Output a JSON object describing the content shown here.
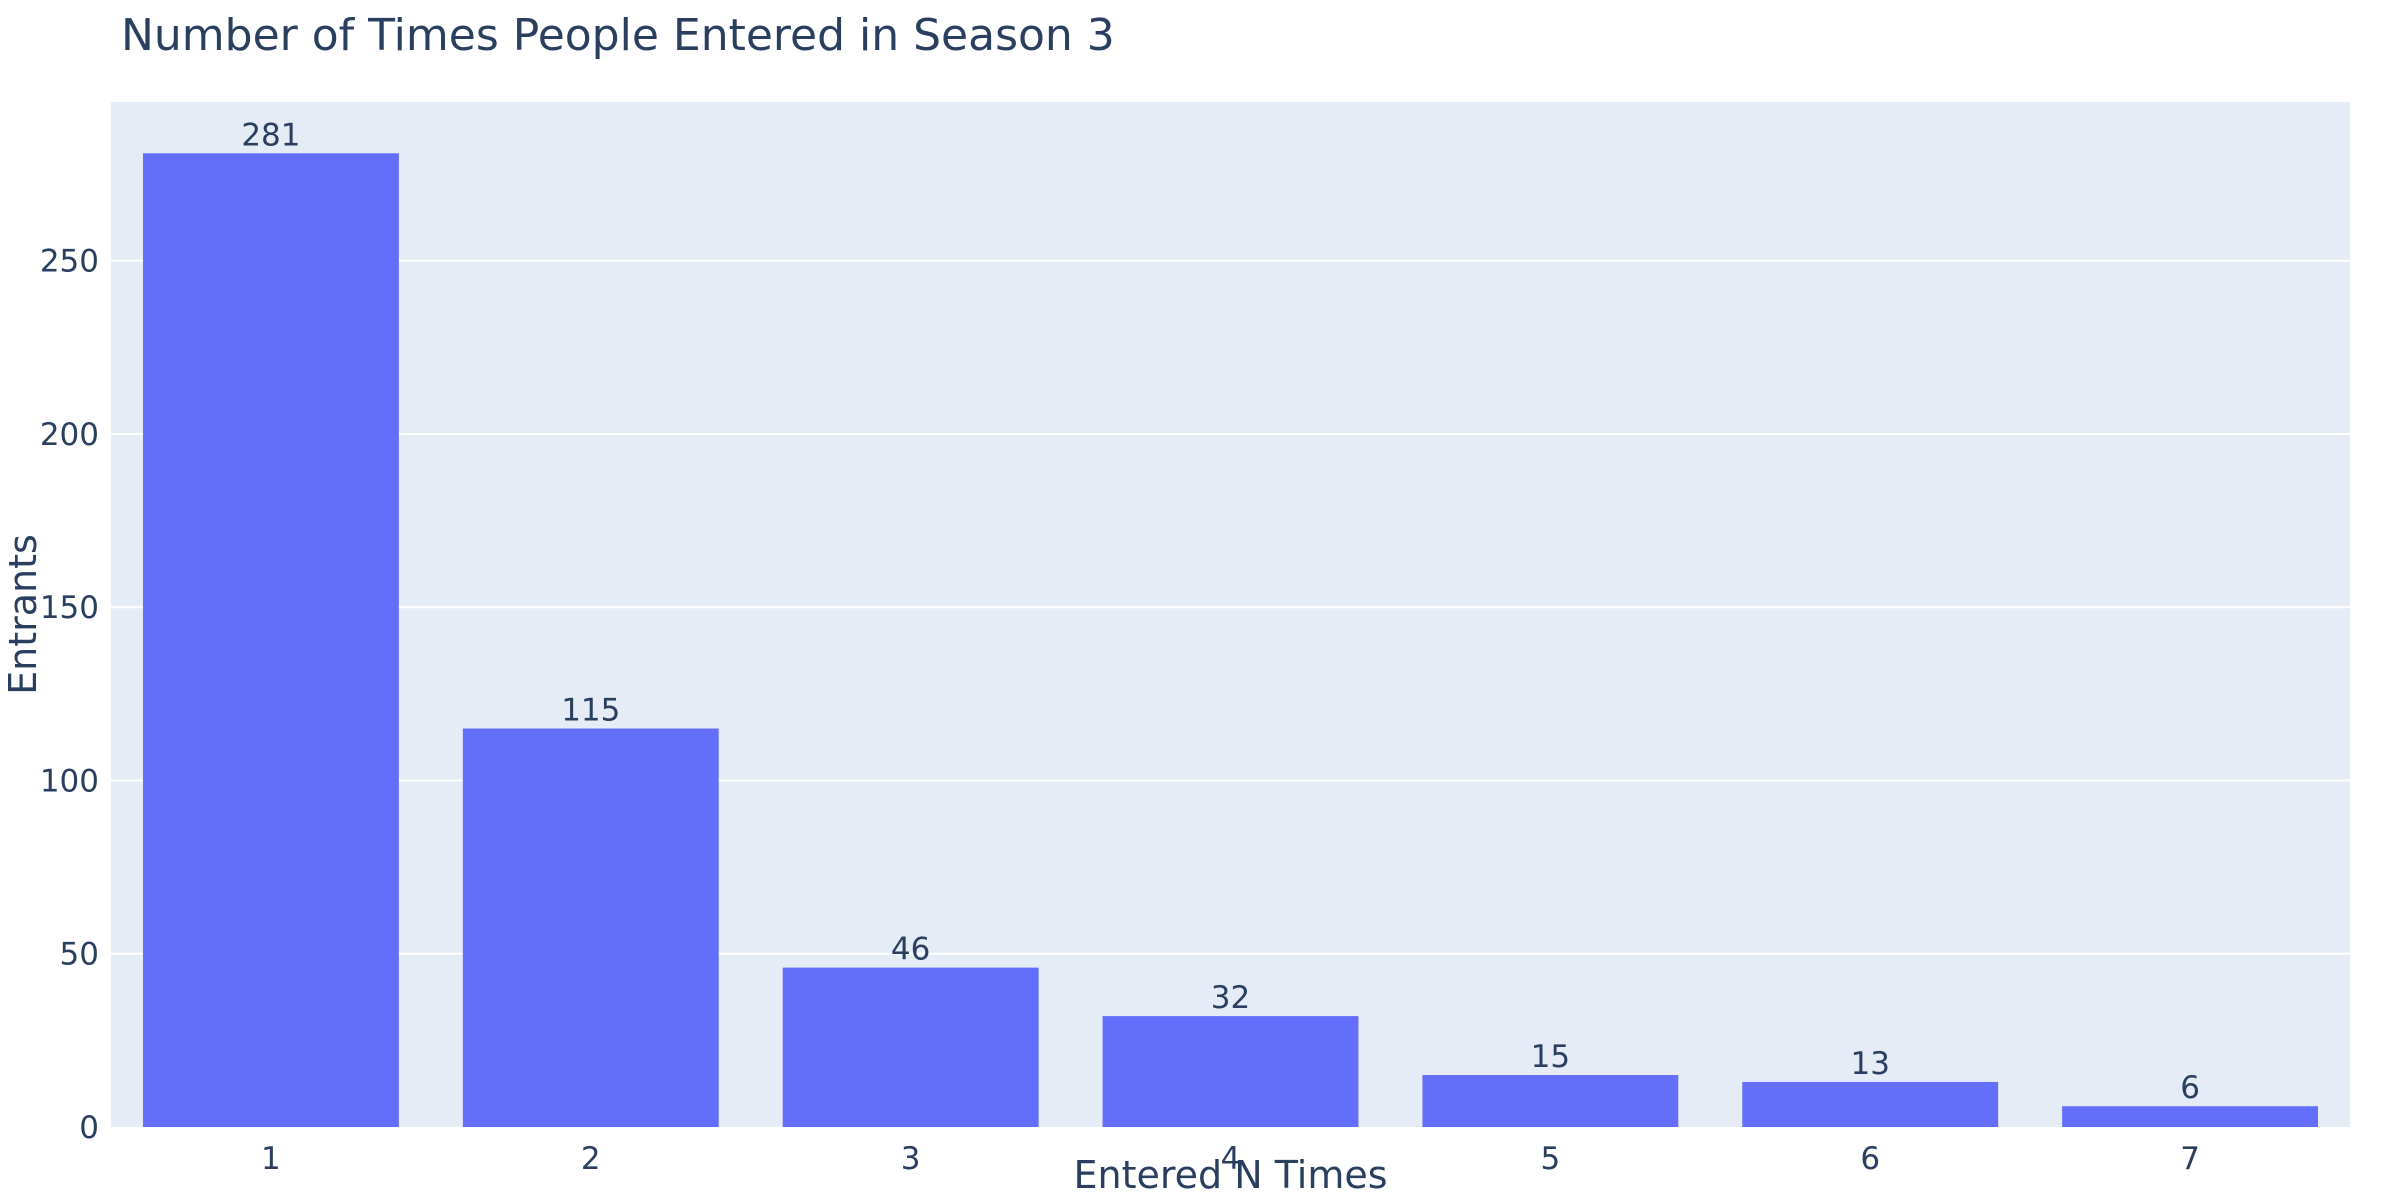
{
  "chart_data": {
    "type": "bar",
    "title": "Number of Times People Entered in Season 3",
    "xlabel": "Entered N Times",
    "ylabel": "Entrants",
    "categories": [
      "1",
      "2",
      "3",
      "4",
      "5",
      "6",
      "7"
    ],
    "values": [
      281,
      115,
      46,
      32,
      15,
      13,
      6
    ],
    "ylim": [
      0,
      295.8
    ],
    "yticks": [
      0,
      50,
      100,
      150,
      200,
      250
    ],
    "grid": true,
    "colors": {
      "bar": "#636efa",
      "plot_background": "#e5ecf6",
      "gridline": "#ffffff",
      "text": "#2a3f5f"
    }
  }
}
